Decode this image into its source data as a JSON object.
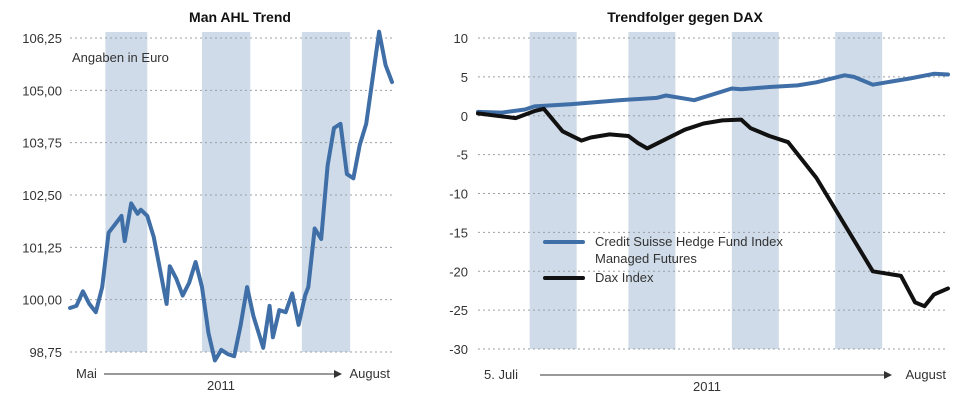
{
  "chart_data": [
    {
      "type": "line",
      "title": "Man AHL Trend",
      "note": "Angaben in Euro",
      "ylim": [
        98.75,
        106.25
      ],
      "yticks": [
        "106,25",
        "105,00",
        "103,75",
        "102,50",
        "101,25",
        "100,00",
        "98,75"
      ],
      "x_start_label": "Mai",
      "x_end_label": "August",
      "x_year_label": "2011",
      "grid": true,
      "bands": [
        [
          0.11,
          0.24
        ],
        [
          0.41,
          0.56
        ],
        [
          0.72,
          0.87
        ]
      ],
      "series": [
        {
          "color": "#3f6fa6",
          "x": [
            0,
            0.02,
            0.04,
            0.06,
            0.08,
            0.1,
            0.12,
            0.14,
            0.16,
            0.17,
            0.19,
            0.21,
            0.22,
            0.24,
            0.26,
            0.28,
            0.3,
            0.31,
            0.33,
            0.35,
            0.37,
            0.39,
            0.41,
            0.43,
            0.45,
            0.47,
            0.49,
            0.51,
            0.53,
            0.55,
            0.57,
            0.59,
            0.6,
            0.62,
            0.63,
            0.65,
            0.67,
            0.69,
            0.71,
            0.73,
            0.74,
            0.76,
            0.78,
            0.8,
            0.82,
            0.84,
            0.86,
            0.88,
            0.9,
            0.92,
            0.94,
            0.96,
            0.98,
            1.0
          ],
          "values": [
            99.8,
            99.85,
            100.2,
            99.9,
            99.7,
            100.3,
            101.6,
            101.8,
            102.0,
            101.4,
            102.3,
            102.05,
            102.15,
            102.0,
            101.5,
            100.7,
            99.9,
            100.8,
            100.5,
            100.1,
            100.4,
            100.9,
            100.3,
            99.2,
            98.55,
            98.8,
            98.7,
            98.65,
            99.4,
            100.3,
            99.6,
            99.1,
            98.85,
            99.85,
            99.1,
            99.75,
            99.7,
            100.15,
            99.4,
            100.1,
            100.3,
            101.7,
            101.45,
            103.2,
            104.1,
            104.2,
            103.0,
            102.9,
            103.7,
            104.2,
            105.3,
            106.4,
            105.6,
            105.2
          ]
        }
      ]
    },
    {
      "type": "line",
      "title": "Trendfolger gegen DAX",
      "ylim": [
        -30,
        10
      ],
      "yticks": [
        "10",
        "5",
        "0",
        "-5",
        "-10",
        "-15",
        "-20",
        "-25",
        "-30"
      ],
      "x_start_label": "5. Juli",
      "x_end_label": "August",
      "x_year_label": "2011",
      "grid": true,
      "legend_position": "lower-left",
      "bands": [
        [
          0.11,
          0.21
        ],
        [
          0.32,
          0.42
        ],
        [
          0.54,
          0.64
        ],
        [
          0.76,
          0.86
        ]
      ],
      "series": [
        {
          "name": "Credit Suisse Hedge Fund Index Managed Futures",
          "color": "#3f6fa6",
          "x": [
            0,
            0.05,
            0.1,
            0.12,
            0.2,
            0.3,
            0.38,
            0.4,
            0.46,
            0.54,
            0.56,
            0.62,
            0.68,
            0.72,
            0.78,
            0.8,
            0.84,
            0.88,
            0.92,
            0.97,
            1.0
          ],
          "values": [
            0.5,
            0.4,
            0.8,
            1.2,
            1.5,
            2.0,
            2.3,
            2.6,
            2.0,
            3.5,
            3.4,
            3.7,
            3.9,
            4.3,
            5.2,
            5.0,
            4.0,
            4.4,
            4.8,
            5.4,
            5.3
          ]
        },
        {
          "name": "Dax Index",
          "color": "#111111",
          "x": [
            0,
            0.04,
            0.08,
            0.12,
            0.14,
            0.18,
            0.22,
            0.24,
            0.28,
            0.32,
            0.34,
            0.36,
            0.4,
            0.44,
            0.48,
            0.52,
            0.56,
            0.58,
            0.62,
            0.66,
            0.72,
            0.78,
            0.84,
            0.88,
            0.9,
            0.93,
            0.95,
            0.97,
            1.0
          ],
          "values": [
            0.3,
            0.0,
            -0.3,
            0.6,
            0.9,
            -2.0,
            -3.2,
            -2.8,
            -2.4,
            -2.6,
            -3.5,
            -4.2,
            -3.0,
            -1.8,
            -1.0,
            -0.6,
            -0.5,
            -1.6,
            -2.6,
            -3.4,
            -8.0,
            -14.0,
            -20.0,
            -20.4,
            -20.6,
            -24.0,
            -24.5,
            -23.0,
            -22.2
          ]
        }
      ]
    }
  ]
}
